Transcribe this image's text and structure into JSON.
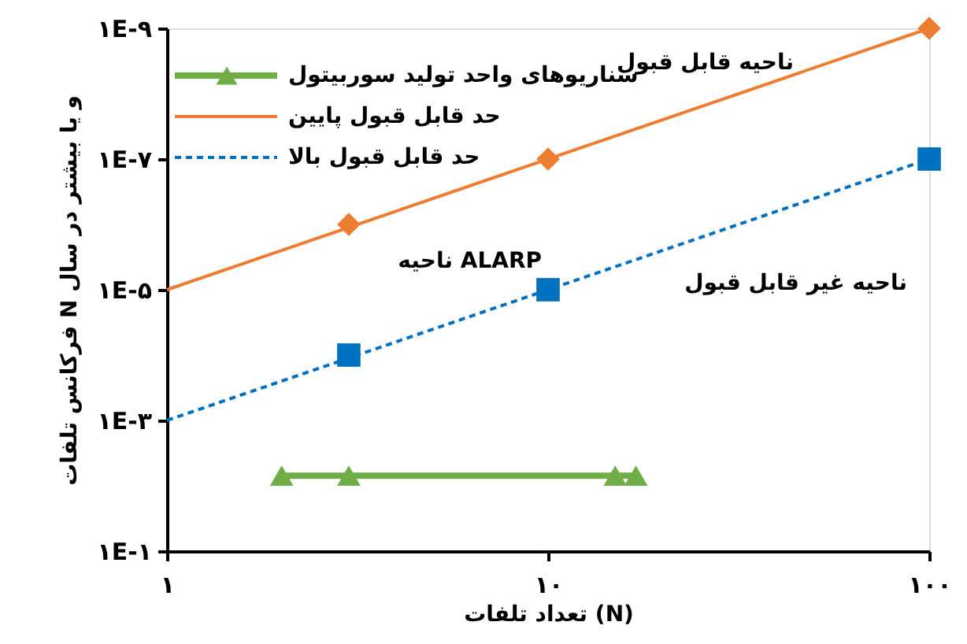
{
  "chart_data": {
    "type": "line",
    "xlabel": "تعداد تلفات (N)",
    "ylabel": "فرکانس تلفات N و یا بیشتر در سال",
    "log": "xy",
    "grid": false,
    "legend": "top left",
    "xlim": [
      1,
      100
    ],
    "xticks": [
      {
        "value": 1,
        "label": "۱"
      },
      {
        "value": 10,
        "label": "۱۰"
      },
      {
        "value": 100,
        "label": "۱۰۰"
      }
    ],
    "ylim": [
      0.1,
      1e-09
    ],
    "yticks": [
      {
        "value": 1e-09,
        "label": "۱E-۹"
      },
      {
        "value": 1e-07,
        "label": "۱E-۷"
      },
      {
        "value": 1e-05,
        "label": "۱E-۵"
      },
      {
        "value": 0.001,
        "label": "۱E-۳"
      },
      {
        "value": 0.1,
        "label": "۱E-۱"
      }
    ],
    "series": [
      {
        "name": "سناریوهای واحد تولید سوربیتول",
        "color": "#70ad47",
        "marker": "triangle",
        "line_style": "solid",
        "x": [
          2,
          3,
          15,
          17
        ],
        "values": [
          0.007,
          0.007,
          0.007,
          0.007
        ]
      },
      {
        "name": "حد قابل قبول پایین",
        "color": "#ed7d31",
        "marker": "none",
        "line_style": "solid",
        "x": [
          1,
          100
        ],
        "values": [
          1e-05,
          1e-09
        ]
      },
      {
        "name": "حد  قابل قبول بالا",
        "color": "#0070c0",
        "marker": "none",
        "line_style": "dashed",
        "x": [
          1,
          100
        ],
        "values": [
          0.001,
          1e-07
        ]
      },
      {
        "type": "scatter",
        "color": "#ed7d31",
        "marker": "diamond",
        "x": [
          3,
          10,
          100
        ],
        "values": [
          1e-06,
          1e-07,
          1e-09
        ]
      },
      {
        "type": "scatter",
        "color": "#0070c0",
        "marker": "square",
        "x": [
          3,
          10,
          100
        ],
        "values": [
          0.0001,
          1e-05,
          1e-07
        ]
      }
    ],
    "annotations": [
      "ناحیه قابل قبول",
      "ناحیه ALARP",
      "ناحیه غیر قابل قبول"
    ]
  }
}
